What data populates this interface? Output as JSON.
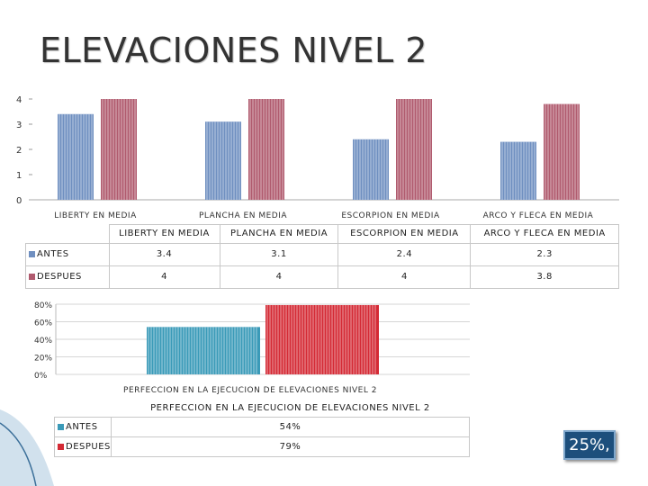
{
  "title": "ELEVACIONES NIVEL 2",
  "chart_data": [
    {
      "type": "bar",
      "categories": [
        "LIBERTY EN MEDIA",
        "PLANCHA EN MEDIA",
        "ESCORPION EN MEDIA",
        "ARCO Y FLECA EN MEDIA"
      ],
      "series": [
        {
          "name": "ANTES",
          "values": [
            3.4,
            3.1,
            2.4,
            2.3
          ],
          "color": "#6f8fc0"
        },
        {
          "name": "DESPUES",
          "values": [
            4,
            4,
            4,
            3.8
          ],
          "color": "#b05a6e"
        }
      ],
      "ylim": [
        0,
        4
      ],
      "yticks": [
        "0",
        "1",
        "2",
        "3",
        "4"
      ],
      "table": {
        "headers": [
          "LIBERTY EN MEDIA",
          "PLANCHA EN MEDIA",
          "ESCORPION EN MEDIA",
          "ARCO Y FLECA EN MEDIA"
        ],
        "rows": [
          {
            "label": "ANTES",
            "cells": [
              "3.4",
              "3.1",
              "2.4",
              "2.3"
            ]
          },
          {
            "label": "DESPUES",
            "cells": [
              "4",
              "4",
              "4",
              "3.8"
            ]
          }
        ]
      },
      "legend": "table"
    },
    {
      "type": "bar",
      "categories": [
        "PERFECCION EN LA EJECUCION DE ELEVACIONES NIVEL 2"
      ],
      "series": [
        {
          "name": "ANTES",
          "values": [
            54
          ],
          "color": "#3a9ab8"
        },
        {
          "name": "DESPUES",
          "values": [
            79
          ],
          "color": "#d42a35"
        }
      ],
      "ylim": [
        0,
        80
      ],
      "yticks": [
        "0%",
        "20%",
        "40%",
        "60%",
        "80%"
      ],
      "table": {
        "headers": [
          "PERFECCION EN LA EJECUCION DE ELEVACIONES NIVEL 2"
        ],
        "rows": [
          {
            "label": "ANTES",
            "cells": [
              "54%"
            ]
          },
          {
            "label": "DESPUES",
            "cells": [
              "79%"
            ]
          }
        ]
      },
      "legend": "table"
    }
  ],
  "badge": "25%,"
}
